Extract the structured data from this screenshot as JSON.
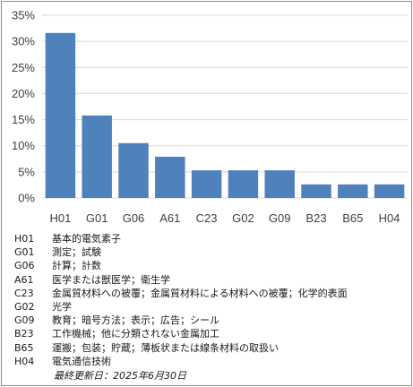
{
  "chart_data": {
    "type": "bar",
    "categories": [
      "H01",
      "G01",
      "G06",
      "A61",
      "C23",
      "G02",
      "G09",
      "B23",
      "B65",
      "H04"
    ],
    "values": [
      31.6,
      15.8,
      10.5,
      7.9,
      5.3,
      5.3,
      5.3,
      2.6,
      2.6,
      2.6
    ],
    "ylim": [
      0,
      35
    ],
    "yticks": [
      0,
      5,
      10,
      15,
      20,
      25,
      30,
      35
    ],
    "ytick_labels": [
      "0%",
      "5%",
      "10%",
      "15%",
      "20%",
      "25%",
      "30%",
      "35%"
    ],
    "grid": true,
    "bar_color": "#4f81bd",
    "grid_color": "#d9d9d9"
  },
  "legend": [
    {
      "code": "H01",
      "desc": "基本的電気素子"
    },
    {
      "code": "G01",
      "desc": "測定；試験"
    },
    {
      "code": "G06",
      "desc": "計算；計数"
    },
    {
      "code": "A61",
      "desc": "医学または獣医学；衛生学"
    },
    {
      "code": "C23",
      "desc": "金属質材料への被覆；金属質材料による材料への被覆；化学的表面"
    },
    {
      "code": "G02",
      "desc": "光学"
    },
    {
      "code": "G09",
      "desc": "教育；暗号方法；表示；広告；シール"
    },
    {
      "code": "B23",
      "desc": "工作機械；他に分類されない金属加工"
    },
    {
      "code": "B65",
      "desc": "運搬；包装；貯蔵；薄板状または線条材料の取扱い"
    },
    {
      "code": "H04",
      "desc": "電気通信技術"
    }
  ],
  "footer": {
    "updated": "最終更新日：2025年6月30日"
  }
}
